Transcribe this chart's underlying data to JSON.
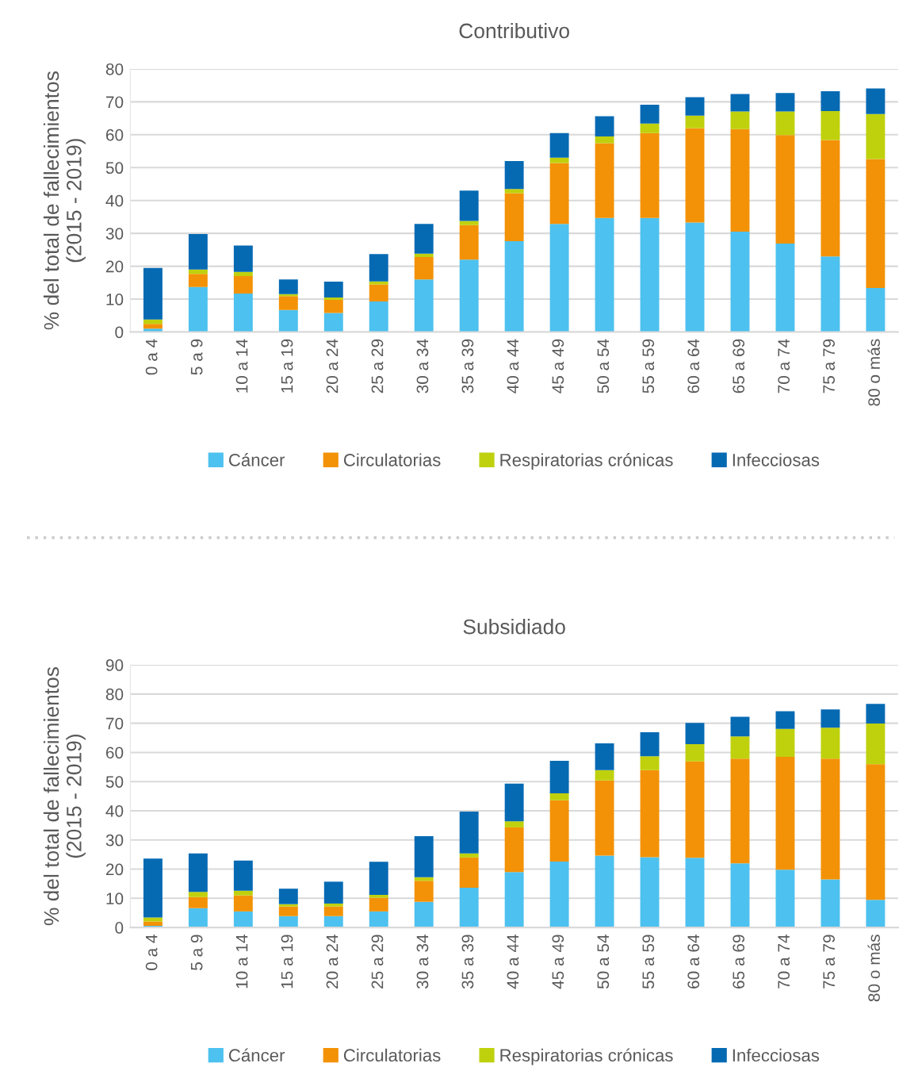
{
  "chart_data": [
    {
      "type": "bar",
      "stacked": true,
      "title": "Contributivo",
      "ylabel": "% del total de fallecimientos\n(2015 - 2019)",
      "categories": [
        "0 a 4",
        "5 a 9",
        "10 a 14",
        "15 a 19",
        "20 a 24",
        "25 a 29",
        "30 a 34",
        "35 a 39",
        "40 a 44",
        "45 a 49",
        "50 a 54",
        "55 a 59",
        "60 a 64",
        "65 a 69",
        "70 a 74",
        "75 a 79",
        "80 o más"
      ],
      "series": [
        {
          "name": "Cáncer",
          "color": "#4dc1ef",
          "values": [
            1,
            13.7,
            11.7,
            6.7,
            5.8,
            9.3,
            16,
            22,
            27.6,
            32.9,
            34.7,
            34.7,
            33.3,
            30.5,
            26.9,
            23.0,
            13.4
          ]
        },
        {
          "name": "Circulatorias",
          "color": "#f39207",
          "values": [
            1.5,
            4,
            5.3,
            4.2,
            4,
            5.2,
            6.8,
            10.5,
            14.6,
            18.5,
            22.7,
            25.8,
            28.7,
            31.2,
            33,
            35.4,
            39.2
          ]
        },
        {
          "name": "Respiratorias crónicas",
          "color": "#bfd10d",
          "values": [
            1.3,
            1.3,
            1.3,
            0.6,
            0.7,
            0.9,
            1,
            1.3,
            1.3,
            1.6,
            2.1,
            2.9,
            3.8,
            5.4,
            7.2,
            8.8,
            13.7
          ]
        },
        {
          "name": "Infecciosas",
          "color": "#066ab3",
          "values": [
            15.7,
            10.8,
            8,
            4.5,
            4.8,
            8.3,
            9.1,
            9.2,
            8.5,
            7.5,
            6.1,
            5.7,
            5.6,
            5.3,
            5.6,
            6,
            7.8
          ]
        }
      ],
      "ylim": [
        0,
        80
      ],
      "yticks": [
        0,
        10,
        20,
        30,
        40,
        50,
        60,
        70,
        80
      ],
      "grid": "y",
      "legend": "bottom"
    },
    {
      "type": "bar",
      "stacked": true,
      "title": "Subsidiado",
      "ylabel": "% del total de fallecimientos\n(2015 - 2019)",
      "categories": [
        "0 a 4",
        "5 a 9",
        "10 a 14",
        "15 a 19",
        "20 a 24",
        "25 a 29",
        "30 a 34",
        "35 a 39",
        "40 a 44",
        "45 a 49",
        "50 a 54",
        "55 a 59",
        "60 a 64",
        "65 a 69",
        "70 a 74",
        "75 a 79",
        "80 o más"
      ],
      "series": [
        {
          "name": "Cáncer",
          "color": "#4dc1ef",
          "values": [
            0.6,
            6.6,
            5.5,
            3.9,
            3.9,
            5.5,
            8.8,
            13.6,
            19,
            22.6,
            24.6,
            24.1,
            23.9,
            22,
            19.8,
            16.5,
            9.5
          ]
        },
        {
          "name": "Circulatorias",
          "color": "#f39207",
          "values": [
            1.5,
            3.8,
            5.5,
            3.3,
            3.3,
            4.7,
            7.2,
            10.4,
            15.3,
            21,
            25.8,
            29.8,
            33,
            35.9,
            38.7,
            41.4,
            46.5
          ]
        },
        {
          "name": "Respiratorias crónicas",
          "color": "#bfd10d",
          "values": [
            1.3,
            1.8,
            1.6,
            0.8,
            1,
            1,
            1.2,
            1.4,
            2.1,
            2.4,
            3.5,
            4.8,
            5.9,
            7.6,
            9.6,
            10.6,
            13.9
          ]
        },
        {
          "name": "Infecciosas",
          "color": "#066ab3",
          "values": [
            20.2,
            13.2,
            10.3,
            5.3,
            7.5,
            11.3,
            14.1,
            14.3,
            12.9,
            11.1,
            9.2,
            8.2,
            7.3,
            6.7,
            6,
            6.2,
            6.7
          ]
        }
      ],
      "ylim": [
        0,
        90
      ],
      "yticks": [
        0,
        10,
        20,
        30,
        40,
        50,
        60,
        70,
        80,
        90
      ],
      "grid": "y",
      "legend": "bottom"
    }
  ]
}
